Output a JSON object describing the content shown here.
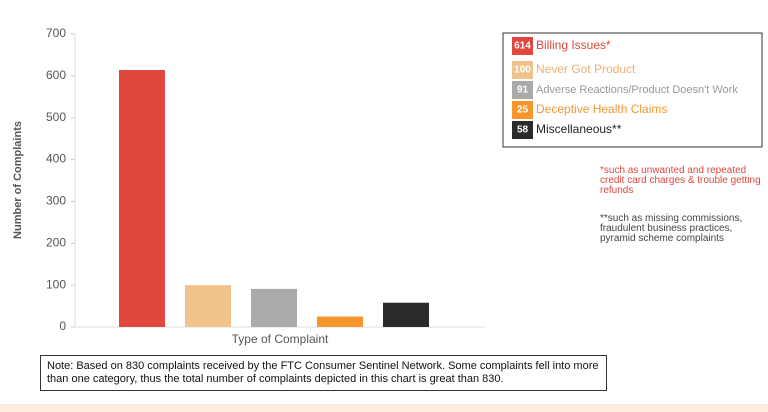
{
  "chart_data": {
    "type": "bar",
    "y_label": "Number of Complaints",
    "x_label": "Type of Complaint",
    "categories": [
      null,
      null,
      null,
      null,
      null
    ],
    "values": [
      614,
      100,
      91,
      25,
      58
    ],
    "colors": [
      "#e0473d",
      "#f0c38c",
      "#aaaaaa",
      "#f7962d",
      "#2b2b2b"
    ],
    "legend_labels": [
      "Billing Issues*",
      "Never Got Product",
      "Adverse Reactions/Product Doesn't Work",
      "Deceptive Health Claims",
      "Miscellaneous**"
    ],
    "legend_text_colors": [
      "#e0473d",
      "#f0b070",
      "#999999",
      "#f7962d",
      "#222222"
    ],
    "ylim": [
      0,
      700
    ],
    "yticks": [
      0,
      100,
      200,
      300,
      400,
      500,
      600,
      700
    ],
    "footnotes": [
      "*such as unwanted and repeated credit card charges & trouble getting refunds",
      "**such as missing commissions, fraudulent business practices, pyramid scheme complaints"
    ],
    "footnote_colors": [
      "#e0473d",
      "#444444"
    ],
    "note": "Note: Based on 830 complaints received by the FTC Consumer Sentinel Network. Some complaints fell into more than one category, thus the total number of complaints depicted in this chart is great than 830."
  }
}
